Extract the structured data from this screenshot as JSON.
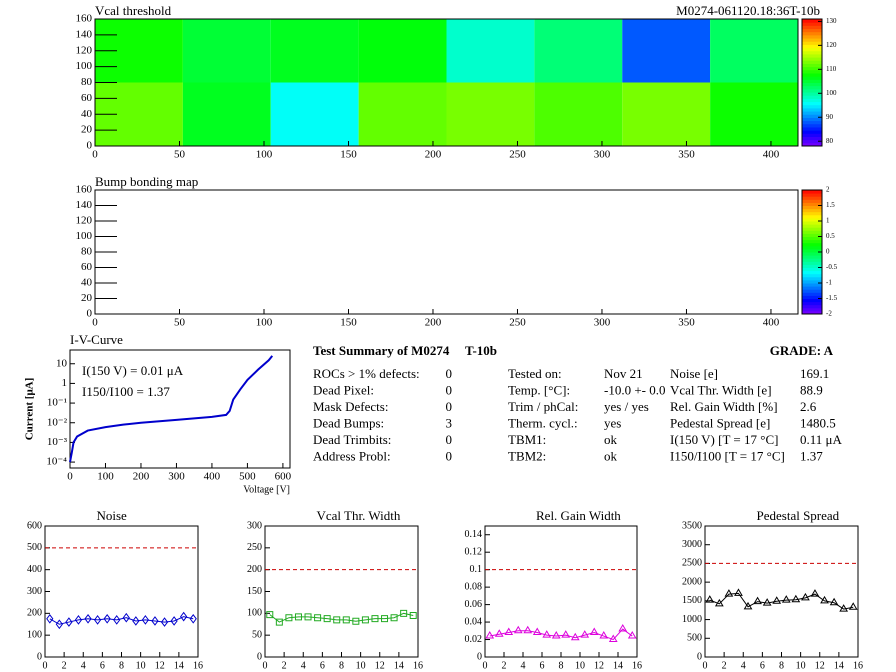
{
  "chart_data": [
    {
      "type": "heatmap",
      "title": "Vcal threshold",
      "label": "M0274-061120.18:36T-10b",
      "xbins": [
        0,
        52,
        104,
        156,
        208,
        260,
        312,
        364,
        416
      ],
      "ybins": [
        0,
        80,
        160
      ],
      "values": [
        [
          112,
          106,
          96,
          112,
          113,
          111,
          113,
          108
        ],
        [
          108,
          105,
          106,
          107,
          98,
          102,
          88,
          103
        ]
      ],
      "xlim": [
        0,
        416
      ],
      "ylim": [
        0,
        160
      ],
      "xticks": [
        0,
        50,
        100,
        150,
        200,
        250,
        300,
        350,
        400
      ],
      "yticks": [
        0,
        20,
        40,
        60,
        80,
        100,
        120,
        140,
        160
      ],
      "zlim": [
        78,
        131
      ],
      "zticks": [
        80,
        90,
        100,
        110,
        120,
        130
      ]
    },
    {
      "type": "heatmap",
      "title": "Bump bonding map",
      "xlim": [
        0,
        416
      ],
      "ylim": [
        0,
        160
      ],
      "xticks": [
        0,
        50,
        100,
        150,
        200,
        250,
        300,
        350,
        400
      ],
      "yticks": [
        0,
        20,
        40,
        60,
        80,
        100,
        120,
        140,
        160
      ],
      "zlim": [
        -2,
        2
      ],
      "zticks": [
        -2,
        -1.5,
        -1,
        -0.5,
        0,
        0.5,
        1,
        1.5,
        2
      ]
    },
    {
      "type": "line",
      "title": "I-V-Curve",
      "log_y": true,
      "color": "#0000cc",
      "annotations": [
        "I(150 V) = 0.01 μA",
        "I150/I100 =  1.37"
      ],
      "ylabel": "Current [μA]",
      "xlabel": "Voltage [V]",
      "x": [
        0,
        5,
        10,
        20,
        50,
        100,
        150,
        200,
        300,
        400,
        440,
        450,
        460,
        480,
        500,
        530,
        560,
        570
      ],
      "values": [
        0.0001,
        0.0003,
        0.001,
        0.002,
        0.004,
        0.006,
        0.008,
        0.01,
        0.014,
        0.02,
        0.025,
        0.04,
        0.15,
        0.5,
        1.5,
        5,
        15,
        25
      ],
      "xlim": [
        0,
        620
      ],
      "ylim": [
        5e-05,
        50
      ],
      "xticks": [
        0,
        100,
        200,
        300,
        400,
        500,
        600
      ],
      "yticks": [
        {
          "value": 0.0001,
          "label": "10⁻⁴"
        },
        {
          "value": 0.001,
          "label": "10⁻³"
        },
        {
          "value": 0.01,
          "label": "10⁻²"
        },
        {
          "value": 0.1,
          "label": "10⁻¹"
        },
        1,
        10
      ]
    },
    {
      "type": "line",
      "title": "Noise",
      "color": "#0000cc",
      "marker": "diamond",
      "limit": 500,
      "x": [
        0.5,
        1.5,
        2.5,
        3.5,
        4.5,
        5.5,
        6.5,
        7.5,
        8.5,
        9.5,
        10.5,
        11.5,
        12.5,
        13.5,
        14.5,
        15.5
      ],
      "values": [
        175,
        150,
        160,
        170,
        175,
        170,
        175,
        170,
        180,
        165,
        170,
        165,
        160,
        165,
        185,
        175
      ],
      "xlim": [
        0,
        16
      ],
      "ylim": [
        0,
        600
      ],
      "xticks": [
        0,
        2,
        4,
        6,
        8,
        10,
        12,
        14,
        16
      ],
      "yticks": [
        0,
        100,
        200,
        300,
        400,
        500,
        600
      ]
    },
    {
      "type": "line",
      "title": "Vcal Thr. Width",
      "color": "#22aa22",
      "marker": "square",
      "limit": 200,
      "x": [
        0.5,
        1.5,
        2.5,
        3.5,
        4.5,
        5.5,
        6.5,
        7.5,
        8.5,
        9.5,
        10.5,
        11.5,
        12.5,
        13.5,
        14.5,
        15.5
      ],
      "values": [
        97,
        80,
        90,
        92,
        92,
        90,
        88,
        85,
        85,
        82,
        85,
        88,
        88,
        90,
        100,
        95
      ],
      "xlim": [
        0,
        16
      ],
      "ylim": [
        0,
        300
      ],
      "xticks": [
        0,
        2,
        4,
        6,
        8,
        10,
        12,
        14,
        16
      ],
      "yticks": [
        0,
        50,
        100,
        150,
        200,
        250,
        300
      ]
    },
    {
      "type": "line",
      "title": "Rel. Gain Width",
      "color": "#dd00dd",
      "marker": "triangle",
      "limit": 0.1,
      "x": [
        0.5,
        1.5,
        2.5,
        3.5,
        4.5,
        5.5,
        6.5,
        7.5,
        8.5,
        9.5,
        10.5,
        11.5,
        12.5,
        13.5,
        14.5,
        15.5
      ],
      "values": [
        0.024,
        0.026,
        0.028,
        0.03,
        0.03,
        0.028,
        0.025,
        0.024,
        0.025,
        0.022,
        0.025,
        0.028,
        0.024,
        0.02,
        0.032,
        0.024
      ],
      "xlim": [
        0,
        16
      ],
      "ylim": [
        0,
        0.15
      ],
      "xticks": [
        0,
        2,
        4,
        6,
        8,
        10,
        12,
        14,
        16
      ],
      "yticks": [
        0,
        0.02,
        0.04,
        0.06,
        0.08,
        0.1,
        0.12,
        0.14
      ]
    },
    {
      "type": "line",
      "title": "Pedestal Spread",
      "color": "#000000",
      "marker": "triangle",
      "limit": 2500,
      "x": [
        0.5,
        1.5,
        2.5,
        3.5,
        4.5,
        5.5,
        6.5,
        7.5,
        8.5,
        9.5,
        10.5,
        11.5,
        12.5,
        13.5,
        14.5,
        15.5
      ],
      "values": [
        1520,
        1420,
        1680,
        1700,
        1340,
        1480,
        1440,
        1490,
        1520,
        1530,
        1580,
        1680,
        1500,
        1450,
        1280,
        1330
      ],
      "xlim": [
        0,
        16
      ],
      "ylim": [
        0,
        3500
      ],
      "xticks": [
        0,
        2,
        4,
        6,
        8,
        10,
        12,
        14,
        16
      ],
      "yticks": [
        0,
        500,
        1000,
        1500,
        2000,
        2500,
        3000,
        3500
      ]
    }
  ],
  "summary": {
    "title": "Test Summary of M0274",
    "module_type": "T-10b",
    "grade": "GRADE:  A",
    "defects": [
      [
        "ROCs > 1% defects:",
        0
      ],
      [
        "Dead Pixel:",
        0
      ],
      [
        "Mask Defects:",
        0
      ],
      [
        "Dead Bumps:",
        3
      ],
      [
        "Dead Trimbits:",
        0
      ],
      [
        "Address Probl:",
        0
      ]
    ],
    "tests": [
      [
        "Tested on:",
        "Nov 21"
      ],
      [
        "Temp. [°C]:",
        "-10.0 +- 0.0"
      ],
      [
        "Trim / phCal:",
        "yes / yes"
      ],
      [
        "Therm. cycl.:",
        "yes"
      ],
      [
        "TBM1:",
        "ok"
      ],
      [
        "TBM2:",
        "ok"
      ]
    ],
    "results": [
      [
        "Noise [e]",
        169.1
      ],
      [
        "Vcal Thr. Width [e]",
        88.9
      ],
      [
        "Rel. Gain Width [%]",
        2.6
      ],
      [
        "Pedestal Spread [e]",
        1480.5
      ],
      [
        "I(150 V) [T = 17 °C]",
        "0.11 μA"
      ],
      [
        "I150/I100  [T = 17 °C]",
        1.37
      ]
    ]
  }
}
